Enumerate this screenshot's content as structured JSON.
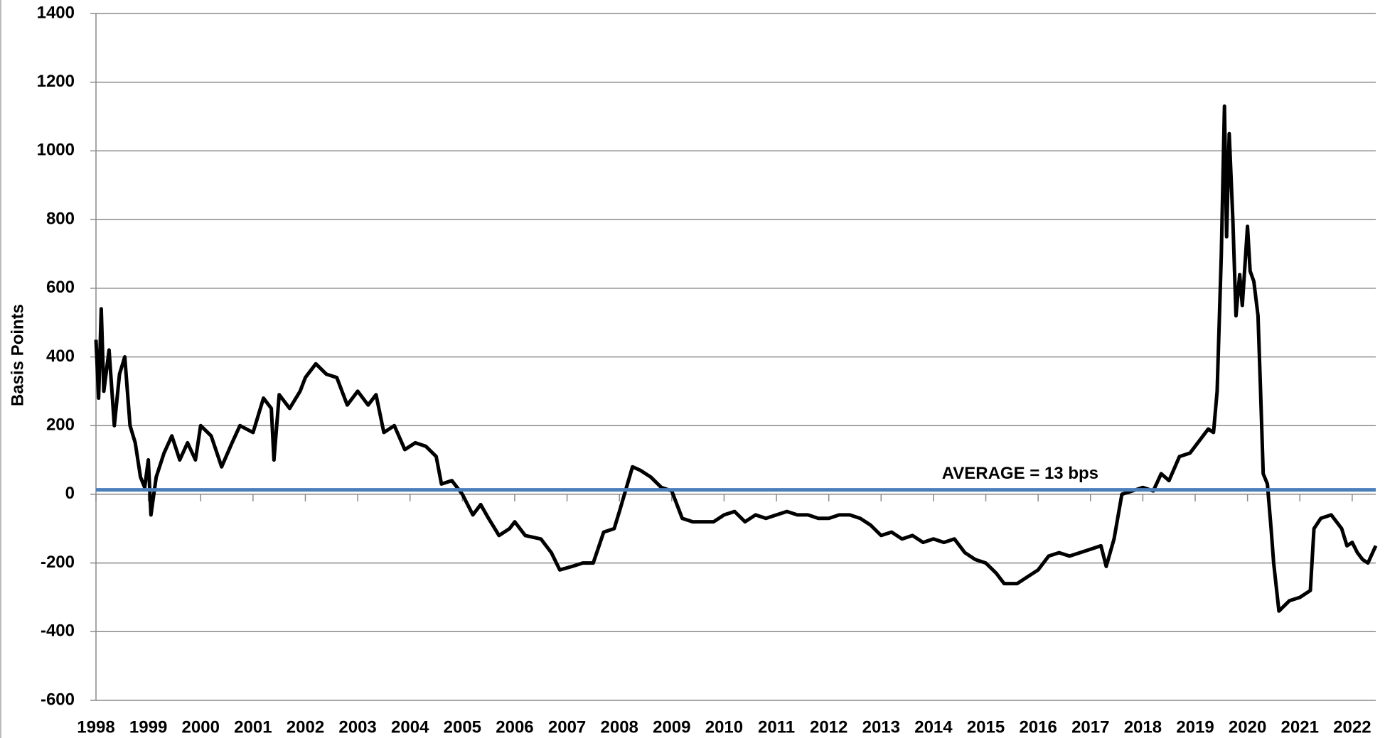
{
  "chart_data": {
    "type": "line",
    "y_label": "Basis Points",
    "annotation": "AVERAGE = 13 bps",
    "reference_line": {
      "value": 13,
      "color": "#4a7ebb"
    },
    "xlim": [
      1998,
      2022.45
    ],
    "xticks": [
      1998,
      1999,
      2000,
      2001,
      2002,
      2003,
      2004,
      2005,
      2006,
      2007,
      2008,
      2009,
      2010,
      2011,
      2012,
      2013,
      2014,
      2015,
      2016,
      2017,
      2018,
      2019,
      2020,
      2021,
      2022
    ],
    "ylim": [
      -600,
      1400
    ],
    "yticks": [
      -600,
      -400,
      -200,
      0,
      200,
      400,
      600,
      800,
      1000,
      1200,
      1400
    ],
    "grid": true,
    "x": [
      1998.0,
      1998.05,
      1998.1,
      1998.15,
      1998.25,
      1998.35,
      1998.45,
      1998.55,
      1998.65,
      1998.75,
      1998.85,
      1998.93,
      1999.0,
      1999.05,
      1999.15,
      1999.3,
      1999.45,
      1999.6,
      1999.75,
      1999.9,
      2000.0,
      2000.2,
      2000.4,
      2000.6,
      2000.75,
      2001.0,
      2001.2,
      2001.35,
      2001.4,
      2001.5,
      2001.7,
      2001.9,
      2002.0,
      2002.2,
      2002.4,
      2002.6,
      2002.8,
      2003.0,
      2003.2,
      2003.35,
      2003.5,
      2003.7,
      2003.9,
      2004.1,
      2004.3,
      2004.5,
      2004.6,
      2004.8,
      2005.0,
      2005.2,
      2005.35,
      2005.5,
      2005.7,
      2005.9,
      2006.0,
      2006.2,
      2006.5,
      2006.7,
      2006.86,
      2007.1,
      2007.3,
      2007.5,
      2007.7,
      2007.9,
      2008.0,
      2008.25,
      2008.4,
      2008.6,
      2008.8,
      2009.0,
      2009.2,
      2009.4,
      2009.6,
      2009.8,
      2010.0,
      2010.2,
      2010.4,
      2010.6,
      2010.8,
      2011.0,
      2011.2,
      2011.4,
      2011.6,
      2011.8,
      2012.0,
      2012.2,
      2012.4,
      2012.6,
      2012.8,
      2013.0,
      2013.2,
      2013.4,
      2013.6,
      2013.8,
      2014.0,
      2014.2,
      2014.4,
      2014.6,
      2014.8,
      2015.0,
      2015.2,
      2015.35,
      2015.6,
      2015.8,
      2016.0,
      2016.2,
      2016.4,
      2016.6,
      2016.8,
      2017.0,
      2017.2,
      2017.3,
      2017.45,
      2017.6,
      2017.8,
      2018.0,
      2018.2,
      2018.35,
      2018.5,
      2018.7,
      2018.9,
      2019.1,
      2019.25,
      2019.35,
      2019.42,
      2019.5,
      2019.56,
      2019.6,
      2019.65,
      2019.72,
      2019.78,
      2019.85,
      2019.9,
      2020.0,
      2020.05,
      2020.12,
      2020.2,
      2020.25,
      2020.3,
      2020.38,
      2020.45,
      2020.5,
      2020.6,
      2020.8,
      2021.0,
      2021.2,
      2021.27,
      2021.4,
      2021.6,
      2021.8,
      2021.9,
      2022.0,
      2022.1,
      2022.2,
      2022.3,
      2022.45
    ],
    "series": [
      {
        "color": "#000000",
        "values": [
          450,
          280,
          540,
          300,
          420,
          200,
          350,
          400,
          200,
          150,
          50,
          20,
          100,
          -60,
          50,
          120,
          170,
          100,
          150,
          100,
          200,
          170,
          80,
          150,
          200,
          180,
          280,
          250,
          100,
          290,
          250,
          300,
          340,
          380,
          350,
          340,
          260,
          300,
          260,
          290,
          180,
          200,
          130,
          150,
          140,
          110,
          30,
          40,
          0,
          -60,
          -30,
          -70,
          -120,
          -100,
          -80,
          -120,
          -130,
          -170,
          -220,
          -210,
          -200,
          -200,
          -110,
          -100,
          -50,
          80,
          70,
          50,
          20,
          10,
          -70,
          -80,
          -80,
          -80,
          -60,
          -50,
          -80,
          -60,
          -70,
          -60,
          -50,
          -60,
          -60,
          -70,
          -70,
          -60,
          -60,
          -70,
          -90,
          -120,
          -110,
          -130,
          -120,
          -140,
          -130,
          -140,
          -130,
          -170,
          -190,
          -200,
          -230,
          -260,
          -260,
          -240,
          -220,
          -180,
          -170,
          -180,
          -170,
          -160,
          -150,
          -210,
          -130,
          0,
          10,
          20,
          10,
          60,
          40,
          110,
          120,
          160,
          190,
          180,
          300,
          700,
          1130,
          750,
          1050,
          800,
          520,
          640,
          550,
          780,
          650,
          620,
          520,
          300,
          60,
          30,
          -100,
          -200,
          -340,
          -310,
          -300,
          -280,
          -100,
          -70,
          -60,
          -100,
          -150,
          -140,
          -170,
          -190,
          -200,
          -150
        ]
      }
    ]
  }
}
